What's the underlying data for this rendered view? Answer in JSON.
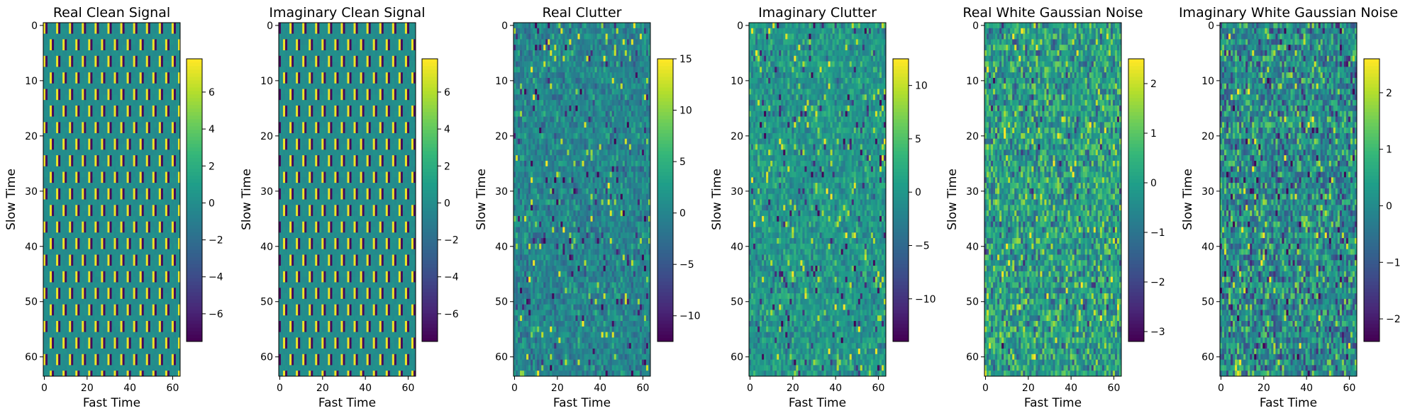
{
  "figure": {
    "background": "#ffffff",
    "colormap": "viridis"
  },
  "chart_data": [
    {
      "type": "heatmap",
      "title": "Real Clean Signal",
      "xlabel": "Fast Time",
      "ylabel": "Slow Time",
      "x_ticks": [
        "0",
        "20",
        "40",
        "60"
      ],
      "y_ticks": [
        "0",
        "10",
        "20",
        "30",
        "40",
        "50",
        "60"
      ],
      "xlim": [
        -0.5,
        63.5
      ],
      "ylim": [
        63.5,
        -0.5
      ],
      "matrix_size": [
        64,
        64
      ],
      "pattern": "clean",
      "colorbar": {
        "min": -7.5,
        "max": 7.8,
        "ticks": [
          -6,
          -4,
          -2,
          0,
          2,
          4,
          6
        ],
        "tick_labels": [
          "−6",
          "−4",
          "−2",
          "0",
          "2",
          "4",
          "6"
        ]
      }
    },
    {
      "type": "heatmap",
      "title": "Imaginary Clean Signal",
      "xlabel": "Fast Time",
      "ylabel": "Slow Time",
      "x_ticks": [
        "0",
        "20",
        "40",
        "60"
      ],
      "y_ticks": [
        "0",
        "10",
        "20",
        "30",
        "40",
        "50",
        "60"
      ],
      "xlim": [
        -0.5,
        63.5
      ],
      "ylim": [
        63.5,
        -0.5
      ],
      "matrix_size": [
        64,
        64
      ],
      "pattern": "clean",
      "colorbar": {
        "min": -7.5,
        "max": 7.8,
        "ticks": [
          -6,
          -4,
          -2,
          0,
          2,
          4,
          6
        ],
        "tick_labels": [
          "−6",
          "−4",
          "−2",
          "0",
          "2",
          "4",
          "6"
        ]
      }
    },
    {
      "type": "heatmap",
      "title": "Real Clutter",
      "xlabel": "Fast Time",
      "ylabel": "Slow Time",
      "x_ticks": [
        "0",
        "20",
        "40",
        "60"
      ],
      "y_ticks": [
        "0",
        "10",
        "20",
        "30",
        "40",
        "50",
        "60"
      ],
      "xlim": [
        -0.5,
        63.5
      ],
      "ylim": [
        63.5,
        -0.5
      ],
      "matrix_size": [
        64,
        64
      ],
      "pattern": "clutter",
      "colorbar": {
        "min": -12.5,
        "max": 15,
        "ticks": [
          -10,
          -5,
          0,
          5,
          10,
          15
        ],
        "tick_labels": [
          "−10",
          "−5",
          "0",
          "5",
          "10",
          "15"
        ]
      }
    },
    {
      "type": "heatmap",
      "title": "Imaginary Clutter",
      "xlabel": "Fast Time",
      "ylabel": "Slow Time",
      "x_ticks": [
        "0",
        "20",
        "40",
        "60"
      ],
      "y_ticks": [
        "0",
        "10",
        "20",
        "30",
        "40",
        "50",
        "60"
      ],
      "xlim": [
        -0.5,
        63.5
      ],
      "ylim": [
        63.5,
        -0.5
      ],
      "matrix_size": [
        64,
        64
      ],
      "pattern": "clutter",
      "colorbar": {
        "min": -14,
        "max": 12.5,
        "ticks": [
          -10,
          -5,
          0,
          5,
          10
        ],
        "tick_labels": [
          "−10",
          "−5",
          "0",
          "5",
          "10"
        ]
      }
    },
    {
      "type": "heatmap",
      "title": "Real White Gaussian Noise",
      "xlabel": "Fast Time",
      "ylabel": "Slow Time",
      "x_ticks": [
        "0",
        "20",
        "40",
        "60"
      ],
      "y_ticks": [
        "0",
        "10",
        "20",
        "30",
        "40",
        "50",
        "60"
      ],
      "xlim": [
        -0.5,
        63.5
      ],
      "ylim": [
        63.5,
        -0.5
      ],
      "matrix_size": [
        64,
        64
      ],
      "pattern": "noise",
      "colorbar": {
        "min": -3.2,
        "max": 2.5,
        "ticks": [
          -3,
          -2,
          -1,
          0,
          1,
          2
        ],
        "tick_labels": [
          "−3",
          "−2",
          "−1",
          "0",
          "1",
          "2"
        ]
      }
    },
    {
      "type": "heatmap",
      "title": "Imaginary White Gaussian Noise",
      "xlabel": "Fast Time",
      "ylabel": "Slow Time",
      "x_ticks": [
        "0",
        "20",
        "40",
        "60"
      ],
      "y_ticks": [
        "0",
        "10",
        "20",
        "30",
        "40",
        "50",
        "60"
      ],
      "xlim": [
        -0.5,
        63.5
      ],
      "ylim": [
        63.5,
        -0.5
      ],
      "matrix_size": [
        64,
        64
      ],
      "pattern": "noise",
      "colorbar": {
        "min": -2.4,
        "max": 2.6,
        "ticks": [
          -2,
          -1,
          0,
          1,
          2
        ],
        "tick_labels": [
          "−2",
          "−1",
          "0",
          "1",
          "2"
        ]
      }
    }
  ]
}
